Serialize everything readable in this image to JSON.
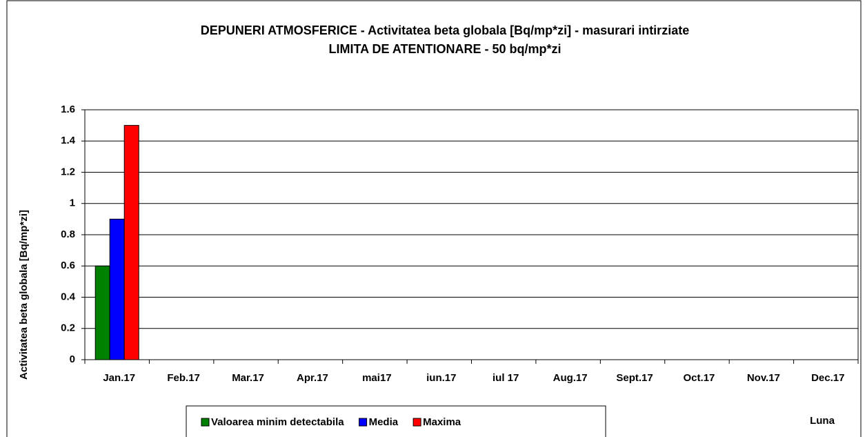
{
  "chart_data": {
    "type": "bar",
    "title": "DEPUNERI ATMOSFERICE - Activitatea beta globala [Bq/mp*zi] - masurari intirziate",
    "subtitle": "LIMITA DE ATENTIONARE - 50 bq/mp*zi",
    "y_label": "Activitatea  beta globala  [Bq/mp*zi]",
    "x_label": "Luna",
    "categories": [
      "Jan.17",
      "Feb.17",
      "Mar.17",
      "Apr.17",
      "mai17",
      "iun.17",
      "iul 17",
      "Aug.17",
      "Sept.17",
      "Oct.17",
      "Nov.17",
      "Dec.17"
    ],
    "series": [
      {
        "name": "Valoarea minim detectabila",
        "color": "#008000",
        "values": [
          0.6,
          null,
          null,
          null,
          null,
          null,
          null,
          null,
          null,
          null,
          null,
          null
        ]
      },
      {
        "name": "Media",
        "color": "#0000ff",
        "values": [
          0.9,
          null,
          null,
          null,
          null,
          null,
          null,
          null,
          null,
          null,
          null,
          null
        ]
      },
      {
        "name": "Maxima",
        "color": "#ff0000",
        "values": [
          1.5,
          null,
          null,
          null,
          null,
          null,
          null,
          null,
          null,
          null,
          null,
          null
        ]
      }
    ],
    "ylim": [
      0,
      1.6
    ],
    "yticks": [
      0,
      0.2,
      0.4,
      0.6,
      0.8,
      1,
      1.2,
      1.4,
      1.6
    ],
    "grid": true,
    "legend": "bottom"
  }
}
